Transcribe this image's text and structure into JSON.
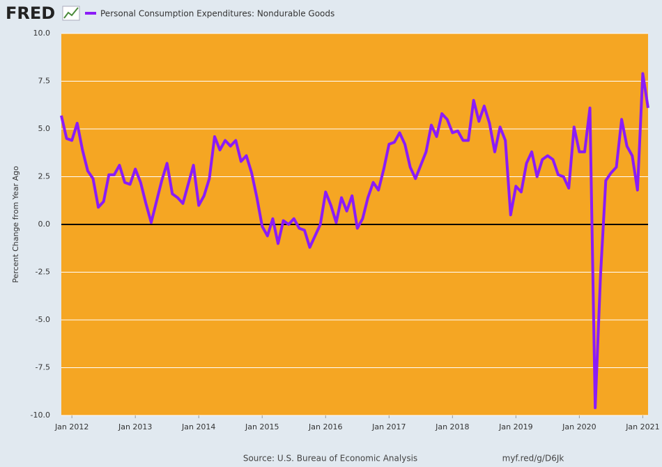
{
  "logo": "FRED",
  "chart_data": {
    "type": "line",
    "ylabel": "Percent Change from Year Ago",
    "source": "Source: U.S. Bureau of Economic Analysis",
    "link": "myf.red/g/D6Jk",
    "grid": true,
    "background": "#f5a623",
    "xlim": [
      "2011-11",
      "2021-02"
    ],
    "ylim": [
      -10,
      10
    ],
    "yticks": [
      {
        "value": -10,
        "label": "-10.0"
      },
      {
        "value": -7.5,
        "label": "-7.5"
      },
      {
        "value": -5,
        "label": "-5.0"
      },
      {
        "value": -2.5,
        "label": "-2.5"
      },
      {
        "value": 0,
        "label": "0.0"
      },
      {
        "value": 2.5,
        "label": "2.5"
      },
      {
        "value": 5,
        "label": "5.0"
      },
      {
        "value": 7.5,
        "label": "7.5"
      },
      {
        "value": 10,
        "label": "10.0"
      }
    ],
    "xticks": [
      {
        "value": "2012-01",
        "label": "Jan 2012"
      },
      {
        "value": "2013-01",
        "label": "Jan 2013"
      },
      {
        "value": "2014-01",
        "label": "Jan 2014"
      },
      {
        "value": "2015-01",
        "label": "Jan 2015"
      },
      {
        "value": "2016-01",
        "label": "Jan 2016"
      },
      {
        "value": "2017-01",
        "label": "Jan 2017"
      },
      {
        "value": "2018-01",
        "label": "Jan 2018"
      },
      {
        "value": "2019-01",
        "label": "Jan 2019"
      },
      {
        "value": "2020-01",
        "label": "Jan 2020"
      },
      {
        "value": "2021-01",
        "label": "Jan 2021"
      }
    ],
    "x": [
      "2011-11",
      "2011-12",
      "2012-01",
      "2012-02",
      "2012-03",
      "2012-04",
      "2012-05",
      "2012-06",
      "2012-07",
      "2012-08",
      "2012-09",
      "2012-10",
      "2012-11",
      "2012-12",
      "2013-01",
      "2013-02",
      "2013-03",
      "2013-04",
      "2013-05",
      "2013-06",
      "2013-07",
      "2013-08",
      "2013-09",
      "2013-10",
      "2013-11",
      "2013-12",
      "2014-01",
      "2014-02",
      "2014-03",
      "2014-04",
      "2014-05",
      "2014-06",
      "2014-07",
      "2014-08",
      "2014-09",
      "2014-10",
      "2014-11",
      "2014-12",
      "2015-01",
      "2015-02",
      "2015-03",
      "2015-04",
      "2015-05",
      "2015-06",
      "2015-07",
      "2015-08",
      "2015-09",
      "2015-10",
      "2015-11",
      "2015-12",
      "2016-01",
      "2016-02",
      "2016-03",
      "2016-04",
      "2016-05",
      "2016-06",
      "2016-07",
      "2016-08",
      "2016-09",
      "2016-10",
      "2016-11",
      "2016-12",
      "2017-01",
      "2017-02",
      "2017-03",
      "2017-04",
      "2017-05",
      "2017-06",
      "2017-07",
      "2017-08",
      "2017-09",
      "2017-10",
      "2017-11",
      "2017-12",
      "2018-01",
      "2018-02",
      "2018-03",
      "2018-04",
      "2018-05",
      "2018-06",
      "2018-07",
      "2018-08",
      "2018-09",
      "2018-10",
      "2018-11",
      "2018-12",
      "2019-01",
      "2019-02",
      "2019-03",
      "2019-04",
      "2019-05",
      "2019-06",
      "2019-07",
      "2019-08",
      "2019-09",
      "2019-10",
      "2019-11",
      "2019-12",
      "2020-01",
      "2020-02",
      "2020-03",
      "2020-04",
      "2020-05",
      "2020-06",
      "2020-07",
      "2020-08",
      "2020-09",
      "2020-10",
      "2020-11",
      "2020-12",
      "2021-01",
      "2021-02"
    ],
    "series": [
      {
        "name": "Personal Consumption Expenditures: Nondurable Goods",
        "color": "#8b1cf7",
        "values": [
          5.7,
          4.5,
          4.4,
          5.3,
          3.9,
          2.8,
          2.4,
          0.9,
          1.2,
          2.6,
          2.6,
          3.1,
          2.2,
          2.1,
          2.9,
          2.2,
          1.1,
          0.1,
          1.2,
          2.3,
          3.2,
          1.6,
          1.4,
          1.1,
          2.1,
          3.1,
          1.0,
          1.5,
          2.4,
          4.6,
          3.9,
          4.4,
          4.1,
          4.4,
          3.3,
          3.6,
          2.7,
          1.4,
          -0.1,
          -0.6,
          0.3,
          -1.0,
          0.2,
          0.0,
          0.3,
          -0.2,
          -0.3,
          -1.2,
          -0.6,
          0.0,
          1.7,
          1.0,
          0.1,
          1.4,
          0.7,
          1.5,
          -0.2,
          0.3,
          1.4,
          2.2,
          1.8,
          2.9,
          4.2,
          4.3,
          4.8,
          4.2,
          3.0,
          2.4,
          3.1,
          3.8,
          5.2,
          4.6,
          5.8,
          5.5,
          4.8,
          4.9,
          4.4,
          4.4,
          6.5,
          5.4,
          6.2,
          5.3,
          3.8,
          5.1,
          4.4,
          0.5,
          2.0,
          1.7,
          3.2,
          3.8,
          2.5,
          3.4,
          3.6,
          3.4,
          2.6,
          2.5,
          1.9,
          5.1,
          3.8,
          3.8,
          6.1,
          -9.6,
          -2.7,
          2.3,
          2.7,
          3.0,
          5.5,
          4.1,
          3.6,
          1.8,
          7.9,
          6.1
        ]
      }
    ]
  }
}
